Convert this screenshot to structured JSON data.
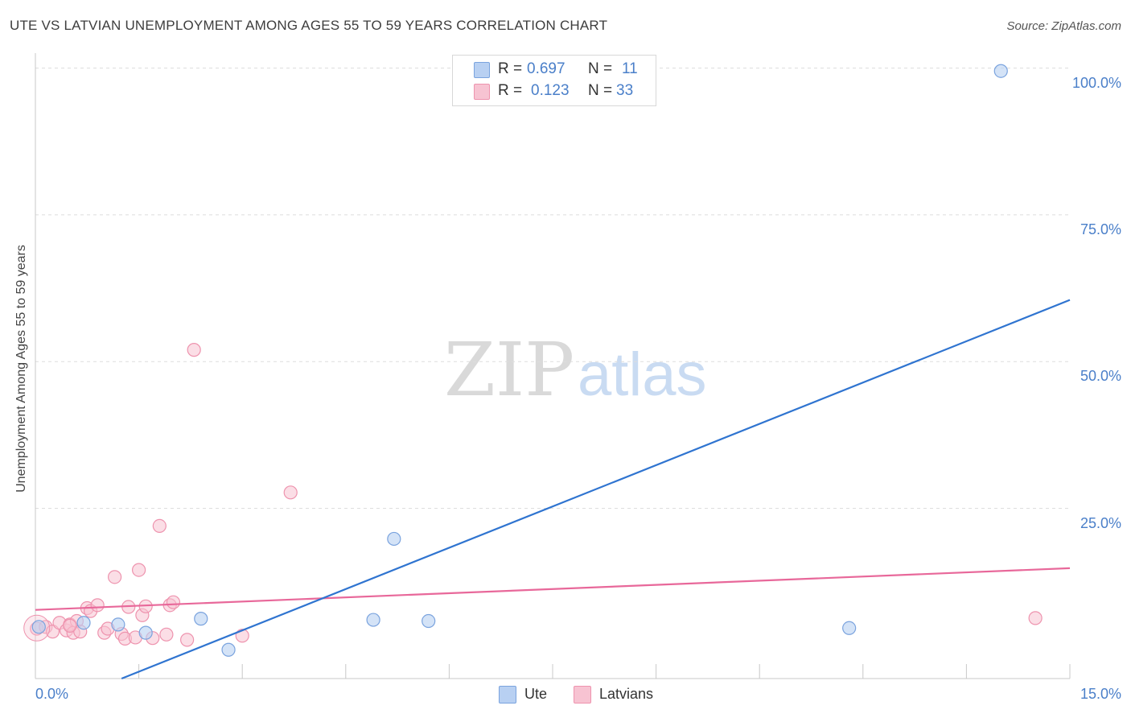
{
  "header": {
    "title": "UTE VS LATVIAN UNEMPLOYMENT AMONG AGES 55 TO 59 YEARS CORRELATION CHART",
    "source": "Source: ZipAtlas.com"
  },
  "watermark": {
    "zip": "ZIP",
    "atlas": "atlas"
  },
  "legend": {
    "rows": [
      {
        "r_label": "R =",
        "r_value": "0.697",
        "n_label": "N =",
        "n_value": "11"
      },
      {
        "r_label": "R =",
        "r_value": "0.123",
        "n_label": "N =",
        "n_value": "33"
      }
    ]
  },
  "bottom_legend": {
    "ute": "Ute",
    "latvians": "Latvians"
  },
  "colors": {
    "ute_fill": "#b8d0f2",
    "ute_stroke": "#7aa3de",
    "ute_line": "#2f74d0",
    "lat_fill": "#f7c3d2",
    "lat_stroke": "#ee93ae",
    "lat_line": "#e8689a",
    "tick_text": "#4a7fc9",
    "grid": "#dddddd"
  },
  "chart_data": {
    "type": "scatter",
    "title": "UTE VS LATVIAN UNEMPLOYMENT AMONG AGES 55 TO 59 YEARS CORRELATION CHART",
    "xlabel": "",
    "ylabel": "Unemployment Among Ages 55 to 59 years",
    "xlim": [
      0,
      15
    ],
    "ylim": [
      -4,
      102
    ],
    "x_tick_labels": [
      "0.0%",
      "15.0%"
    ],
    "y_ticks": [
      25,
      50,
      75,
      100
    ],
    "y_tick_labels": [
      "25.0%",
      "50.0%",
      "75.0%",
      "100.0%"
    ],
    "grid": true,
    "series": [
      {
        "name": "Ute",
        "points": [
          [
            0.05,
            4.8
          ],
          [
            0.7,
            5.5
          ],
          [
            1.2,
            5.2
          ],
          [
            1.6,
            3.8
          ],
          [
            2.4,
            6.2
          ],
          [
            2.8,
            0.9
          ],
          [
            4.9,
            6.0
          ],
          [
            5.7,
            5.8
          ],
          [
            5.2,
            19.8
          ],
          [
            11.8,
            4.6
          ],
          [
            14.0,
            99.5
          ]
        ],
        "trend": {
          "x": [
            1.25,
            15.0
          ],
          "y": [
            -4,
            60.5
          ]
        }
      },
      {
        "name": "Latvians",
        "points": [
          [
            0.02,
            4.5
          ],
          [
            0.15,
            4.8
          ],
          [
            0.25,
            4.0
          ],
          [
            0.35,
            5.5
          ],
          [
            0.45,
            4.2
          ],
          [
            0.5,
            5.2
          ],
          [
            0.55,
            3.8
          ],
          [
            0.6,
            5.8
          ],
          [
            0.65,
            4.0
          ],
          [
            0.75,
            8.0
          ],
          [
            0.8,
            7.5
          ],
          [
            0.9,
            8.5
          ],
          [
            1.0,
            3.8
          ],
          [
            1.05,
            4.5
          ],
          [
            1.15,
            13.3
          ],
          [
            1.25,
            3.6
          ],
          [
            1.3,
            2.8
          ],
          [
            1.35,
            8.2
          ],
          [
            1.45,
            3.0
          ],
          [
            1.5,
            14.5
          ],
          [
            1.55,
            6.8
          ],
          [
            1.6,
            8.3
          ],
          [
            1.7,
            2.9
          ],
          [
            1.8,
            22.0
          ],
          [
            1.9,
            3.5
          ],
          [
            1.95,
            8.5
          ],
          [
            2.0,
            9.0
          ],
          [
            2.2,
            2.6
          ],
          [
            2.3,
            52.0
          ],
          [
            3.0,
            3.3
          ],
          [
            3.7,
            27.7
          ],
          [
            0.5,
            5.0
          ],
          [
            14.5,
            6.3
          ]
        ],
        "trend": {
          "x": [
            0.0,
            15.0
          ],
          "y": [
            7.7,
            14.8
          ]
        }
      }
    ]
  }
}
